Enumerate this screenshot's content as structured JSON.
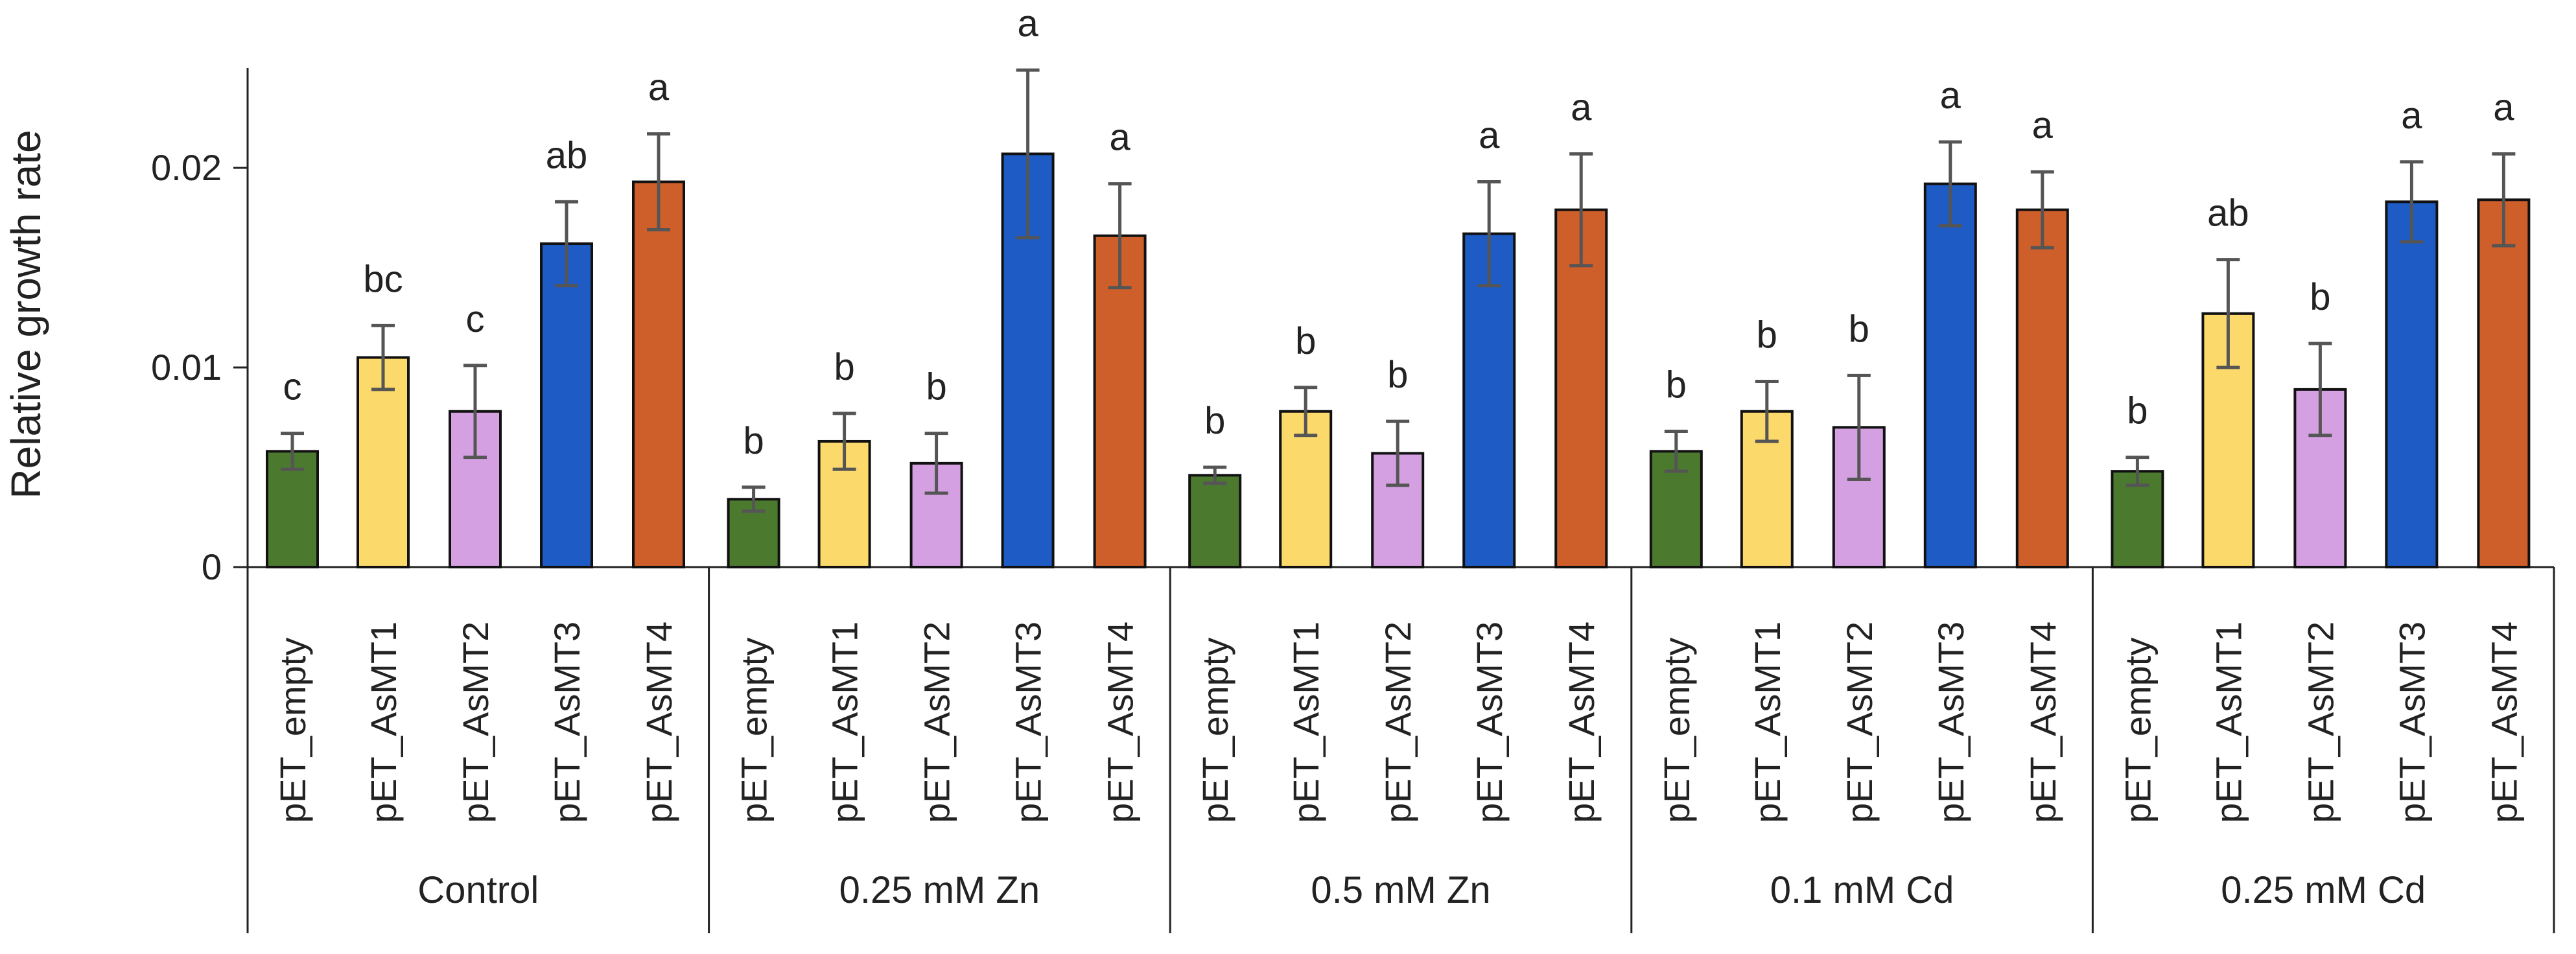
{
  "chart_data": {
    "type": "bar",
    "title": "",
    "xlabel": "",
    "ylabel": "Relative growth rate",
    "ylim": [
      0,
      0.025
    ],
    "yticks": [
      {
        "value": 0,
        "label": "0"
      },
      {
        "value": 0.01,
        "label": "0.01"
      },
      {
        "value": 0.02,
        "label": "0.02"
      }
    ],
    "grid": false,
    "legend": "none",
    "categories": [
      "pET_empty",
      "pET_AsMT1",
      "pET_AsMT2",
      "pET_AsMT3",
      "pET_AsMT4"
    ],
    "colors": {
      "pET_empty": "#4b7a2f",
      "pET_AsMT1": "#fcd96b",
      "pET_AsMT2": "#d4a0e2",
      "pET_AsMT3": "#1f5bc4",
      "pET_AsMT4": "#cf5f2a"
    },
    "groups": [
      {
        "name": "Control",
        "values": [
          0.0058,
          0.0105,
          0.0078,
          0.0162,
          0.0193
        ],
        "errors": [
          0.0009,
          0.0016,
          0.0023,
          0.0021,
          0.0024
        ],
        "letters": [
          "c",
          "bc",
          "c",
          "ab",
          "a"
        ]
      },
      {
        "name": "0.25 mM Zn",
        "values": [
          0.0034,
          0.0063,
          0.0052,
          0.0207,
          0.0166
        ],
        "errors": [
          0.0006,
          0.0014,
          0.0015,
          0.0042,
          0.0026
        ],
        "letters": [
          "b",
          "b",
          "b",
          "a",
          "a"
        ]
      },
      {
        "name": "0.5 mM Zn",
        "values": [
          0.0046,
          0.0078,
          0.0057,
          0.0167,
          0.0179
        ],
        "errors": [
          0.0004,
          0.0012,
          0.0016,
          0.0026,
          0.0028
        ],
        "letters": [
          "b",
          "b",
          "b",
          "a",
          "a"
        ]
      },
      {
        "name": "0.1 mM Cd",
        "values": [
          0.0058,
          0.0078,
          0.007,
          0.0192,
          0.0179
        ],
        "errors": [
          0.001,
          0.0015,
          0.0026,
          0.0021,
          0.0019
        ],
        "letters": [
          "b",
          "b",
          "b",
          "a",
          "a"
        ]
      },
      {
        "name": "0.25 mM Cd",
        "values": [
          0.0048,
          0.0127,
          0.0089,
          0.0183,
          0.0184
        ],
        "errors": [
          0.0007,
          0.0027,
          0.0023,
          0.002,
          0.0023
        ],
        "letters": [
          "b",
          "ab",
          "b",
          "a",
          "a"
        ]
      }
    ]
  }
}
